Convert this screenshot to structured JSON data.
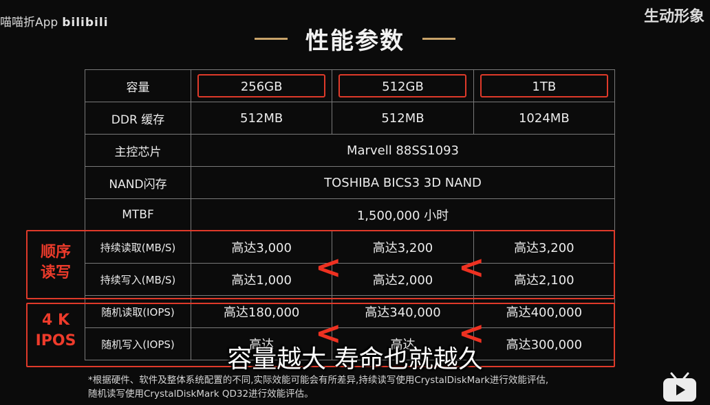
{
  "watermark": {
    "left_text": "喵喵折App",
    "left_logo": "bilibili",
    "right_text": "生动形象"
  },
  "title": "性能参数",
  "header": {
    "label": "容量",
    "cols": [
      "256GB",
      "512GB",
      "1TB"
    ]
  },
  "rows": [
    {
      "label": "DDR 缓存",
      "values": [
        "512MB",
        "512MB",
        "1024MB"
      ]
    },
    {
      "label": "主控芯片",
      "span": "Marvell 88SS1093"
    },
    {
      "label": "NAND闪存",
      "span": "TOSHIBA BICS3 3D NAND"
    },
    {
      "label": "MTBF",
      "span": "1,500,000 小时"
    },
    {
      "label": "持续读取(MB/S)",
      "values": [
        "高达3,000",
        "高达3,200",
        "高达3,200"
      ]
    },
    {
      "label": "持续写入(MB/S)",
      "values": [
        "高达1,000",
        "高达2,000",
        "高达2,100"
      ]
    },
    {
      "label": "随机读取(IOPS)",
      "values": [
        "高达180,000",
        "高达340,000",
        "高达400,000"
      ]
    },
    {
      "label": "随机写入(IOPS)",
      "values": [
        "高达",
        "高达",
        "高达300,000"
      ]
    }
  ],
  "groups": {
    "seq": "顺序\n读写",
    "rand": "4 K\nIPOS"
  },
  "arrow_glyph": "<",
  "subtitle": "容量越大 寿命也就越久",
  "footnote": "*根据硬件、软件及整体系统配置的不同,实际效能可能会有所差异,持续读写使用CrystalDiskMark进行效能评估,\n随机读写使用CrystalDiskMark QD32进行效能评估。",
  "colors": {
    "accent_red": "#e03a2a",
    "title_dash": "#c9a36a",
    "background": "#0b0b0b"
  },
  "icons": {
    "bottom_right": "bilibili-tv-icon"
  }
}
